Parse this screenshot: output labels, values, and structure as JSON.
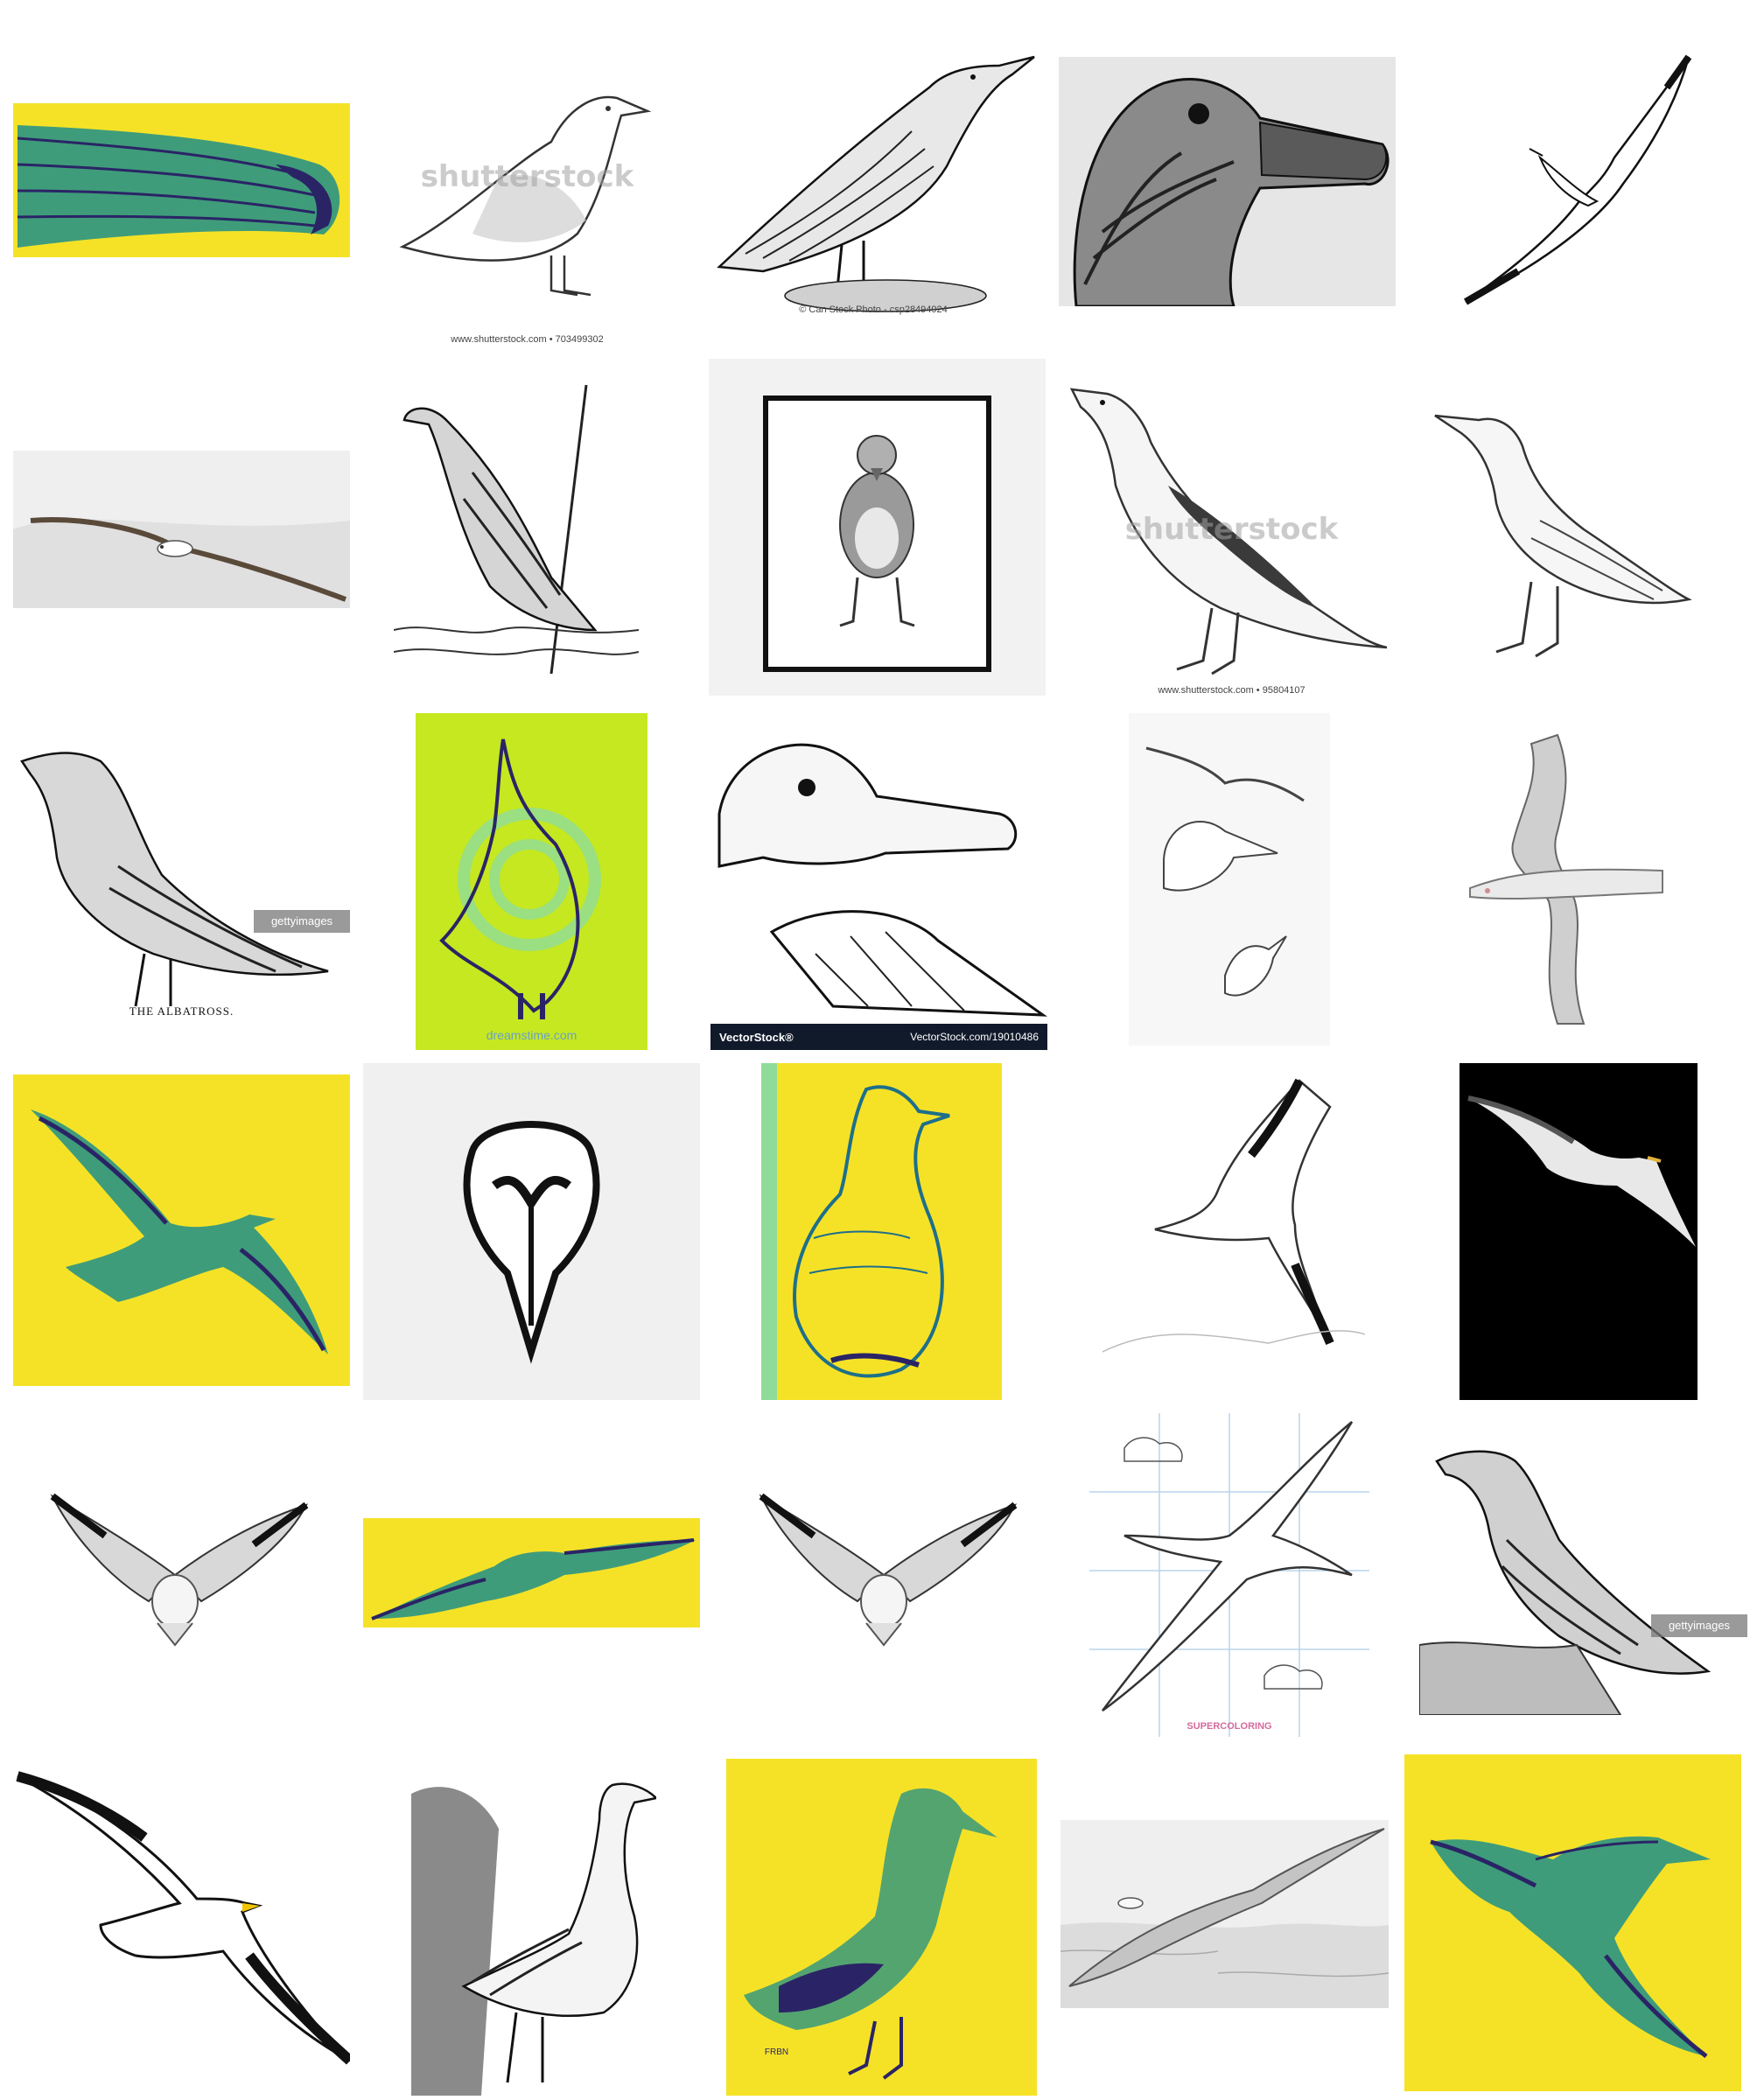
{
  "colors": {
    "yellow": "#f5e227",
    "lime": "#c6e820",
    "teal": "#1e8f8a",
    "navy": "#2a2466",
    "ink": "#1a1a1a",
    "paper": "#f2f2f2"
  },
  "tiles": [
    {
      "id": "beak-closeup",
      "style": "yellow-duotone",
      "icon": "albatross-beak"
    },
    {
      "id": "gull-sketch",
      "style": "line",
      "icon": "gull-standing",
      "watermark_center": "shutterstock",
      "watermark_bottom": "www.shutterstock.com • 703499302"
    },
    {
      "id": "engraving-standing",
      "style": "engraving",
      "icon": "albatross-standing",
      "watermark_bottom": "© Can Stock Photo - csp28494924"
    },
    {
      "id": "zentangle-head",
      "style": "pattern",
      "icon": "albatross-head"
    },
    {
      "id": "flying-sketch-diagonal",
      "style": "line",
      "icon": "albatross-flying"
    },
    {
      "id": "watercolor-glide",
      "style": "watercolor",
      "icon": "albatross-gliding"
    },
    {
      "id": "ship-engraving",
      "style": "engraving",
      "icon": "albatross-on-ship"
    },
    {
      "id": "framed-gull",
      "style": "framed",
      "icon": "gull-front"
    },
    {
      "id": "shutterstock-albatross",
      "style": "pencil",
      "icon": "albatross-standing",
      "watermark_center": "shutterstock",
      "watermark_bottom": "www.shutterstock.com • 95804107"
    },
    {
      "id": "ornate-albatross",
      "style": "line",
      "icon": "albatross-standing"
    },
    {
      "id": "the-albatross",
      "style": "engraving",
      "icon": "albatross-standing",
      "caption": "THE ALBATROSS.",
      "getty": "gettyimages"
    },
    {
      "id": "lime-spiral",
      "style": "lime-duotone",
      "icon": "albatross-looking-up",
      "watermark_bottom": "dreamstime.com"
    },
    {
      "id": "vector-head-foot",
      "style": "engraving",
      "icon": "albatross-head-and-foot",
      "vs_left": "VectorStock®",
      "vs_right": "VectorStock.com/19010486"
    },
    {
      "id": "study-sheet",
      "style": "pencil",
      "icon": "albatross-studies"
    },
    {
      "id": "soaring-large",
      "style": "pencil",
      "icon": "albatross-soaring"
    },
    {
      "id": "yellow-flying",
      "style": "yellow-duotone",
      "icon": "albatross-flying"
    },
    {
      "id": "logo-head",
      "style": "logo",
      "icon": "albatross-head-logo"
    },
    {
      "id": "yellow-standing",
      "style": "yellow-duotone",
      "icon": "albatross-standing"
    },
    {
      "id": "sketch-glide",
      "style": "pencil",
      "icon": "albatross-gliding"
    },
    {
      "id": "black-night",
      "style": "photo-dark",
      "icon": "albatross-flying"
    },
    {
      "id": "gull-wings-up-1",
      "style": "pencil",
      "icon": "gull-wings-up"
    },
    {
      "id": "yellow-banner",
      "style": "yellow-duotone",
      "icon": "albatross-gliding"
    },
    {
      "id": "gull-wings-up-2",
      "style": "pencil",
      "icon": "gull-wings-up"
    },
    {
      "id": "drawing-lesson",
      "style": "line-grid",
      "icon": "albatross-flying",
      "watermark_bottom": "SUPERCOLORING"
    },
    {
      "id": "engraving-rock",
      "style": "engraving",
      "icon": "albatross-on-rock",
      "getty": "gettyimages"
    },
    {
      "id": "bw-flying",
      "style": "line",
      "icon": "albatross-flying"
    },
    {
      "id": "cliff-engraving",
      "style": "engraving",
      "icon": "albatross-on-cliff"
    },
    {
      "id": "yellow-teal-standing",
      "style": "yellow-duotone",
      "icon": "albatross-standing",
      "signature": "FRBN"
    },
    {
      "id": "pencil-sea",
      "style": "pencil",
      "icon": "albatross-over-sea"
    },
    {
      "id": "yellow-teal-flying",
      "style": "yellow-duotone",
      "icon": "albatross-flying"
    }
  ]
}
